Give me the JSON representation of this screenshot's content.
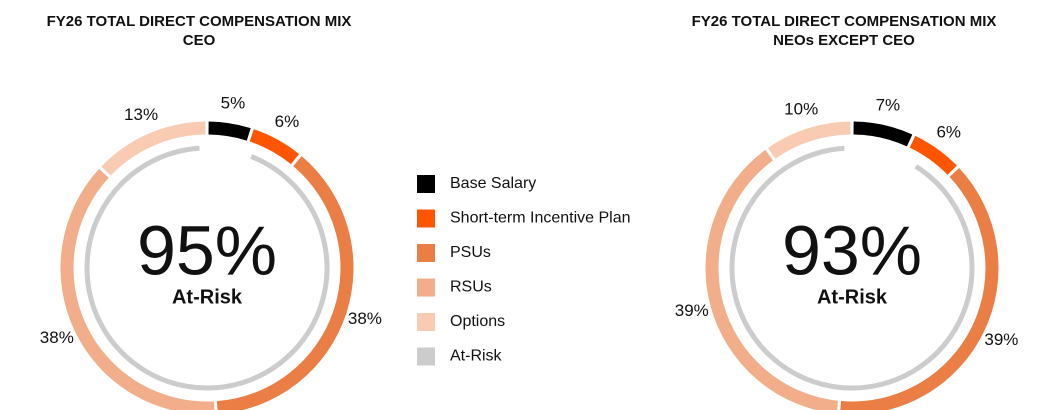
{
  "chart_data": [
    {
      "type": "donut",
      "title": "FY26 TOTAL DIRECT COMPENSATION MIX",
      "subtitle": "CEO",
      "categories": [
        "Base Salary",
        "Short-term Incentive Plan",
        "PSUs",
        "RSUs",
        "Options"
      ],
      "values": [
        5,
        6,
        38,
        38,
        13
      ],
      "value_labels": [
        "5%",
        "6%",
        "38%",
        "38%",
        "13%"
      ],
      "colors": [
        "#000000",
        "#ff5500",
        "#ea7e45",
        "#f2ad8a",
        "#f8cbb2"
      ],
      "inner": {
        "name": "At-Risk",
        "value": 95,
        "value_label": "95%",
        "color": "#cccccc"
      }
    },
    {
      "type": "donut",
      "title": "FY26 TOTAL DIRECT COMPENSATION MIX",
      "subtitle": "NEOs EXCEPT CEO",
      "categories": [
        "Base Salary",
        "Short-term Incentive Plan",
        "PSUs",
        "RSUs",
        "Options"
      ],
      "values": [
        7,
        6,
        39,
        39,
        10
      ],
      "value_labels": [
        "7%",
        "6%",
        "39%",
        "39%",
        "10%"
      ],
      "colors": [
        "#000000",
        "#ff5500",
        "#ea7e45",
        "#f2ad8a",
        "#f8cbb2"
      ],
      "inner": {
        "name": "At-Risk",
        "value": 93,
        "value_label": "93%",
        "color": "#cccccc"
      }
    }
  ]
}
